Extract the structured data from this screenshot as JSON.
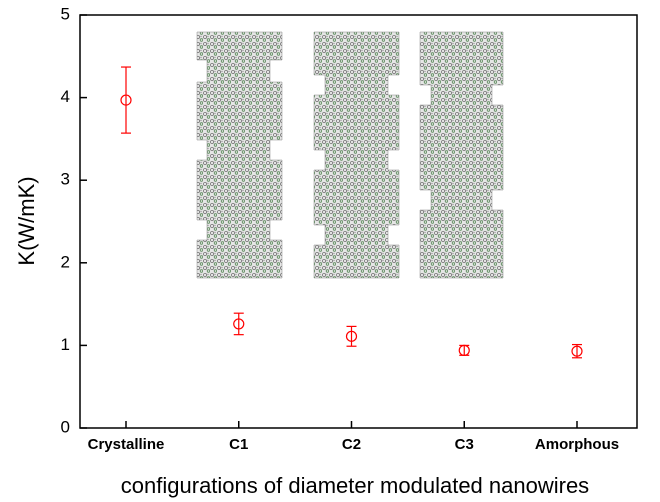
{
  "chart_data": {
    "type": "scatter",
    "y_label": "K(W/mK)",
    "x_label": "configurations of diameter modulated nanowires",
    "categories": [
      "Crystalline",
      "C1",
      "C2",
      "C3",
      "Amorphous"
    ],
    "values": [
      3.97,
      1.26,
      1.11,
      0.94,
      0.93
    ],
    "errors": [
      0.4,
      0.13,
      0.12,
      0.06,
      0.08
    ],
    "color": "#ff0000",
    "ylim": [
      0,
      5
    ],
    "yticks": [
      0,
      1,
      2,
      3,
      4,
      5
    ]
  }
}
